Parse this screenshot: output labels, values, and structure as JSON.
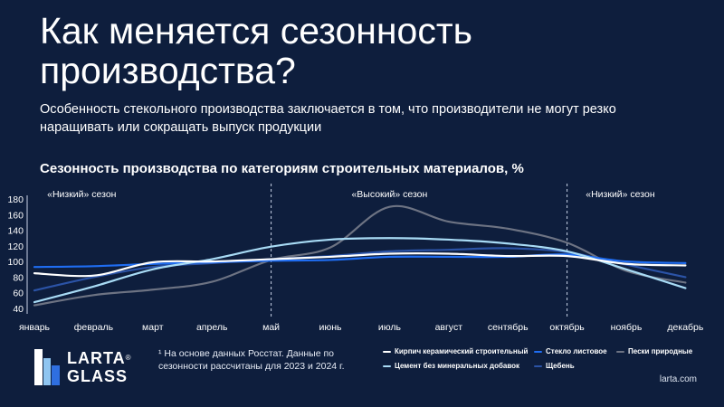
{
  "header": {
    "title": "Как меняется сезонность производства?",
    "subtitle": "Особенность стекольного производства заключается в том, что производители не могут резко наращивать или сокращать выпуск продукции"
  },
  "chart_data": {
    "type": "line",
    "title": "Сезонность производства по категориям строительных материалов, %",
    "categories": [
      "январь",
      "февраль",
      "март",
      "апрель",
      "май",
      "июнь",
      "июль",
      "август",
      "сентябрь",
      "октябрь",
      "ноябрь",
      "декабрь"
    ],
    "ylim": [
      40,
      180
    ],
    "yticks": [
      40,
      60,
      80,
      100,
      120,
      140,
      160,
      180
    ],
    "grid": false,
    "legend_position": "bottom",
    "season_labels": [
      {
        "text": "«Низкий» сезон",
        "at_month": 1.8
      },
      {
        "text": "«Высокий» сезон",
        "at_month": 7.0
      },
      {
        "text": "«Низкий» сезон",
        "at_month": 10.9
      }
    ],
    "season_dividers_at_month": [
      5,
      10
    ],
    "series": [
      {
        "name": "Кирпич керамический строительный",
        "color": "#ffffff",
        "values": [
          85,
          82,
          99,
          100,
          103,
          106,
          110,
          110,
          107,
          107,
          97,
          95
        ]
      },
      {
        "name": "Стекло листовое",
        "color": "#1f6df2",
        "values": [
          93,
          94,
          97,
          99,
          101,
          102,
          106,
          106,
          106,
          109,
          100,
          98
        ]
      },
      {
        "name": "Пески природные",
        "color": "#6d7383",
        "values": [
          44,
          57,
          64,
          74,
          102,
          118,
          170,
          151,
          142,
          124,
          88,
          73
        ]
      },
      {
        "name": "Цемент без минеральных добавок",
        "color": "#a8dbf5",
        "values": [
          48,
          68,
          90,
          103,
          119,
          128,
          130,
          128,
          123,
          113,
          90,
          66
        ]
      },
      {
        "name": "Щебень",
        "color": "#2b53a6",
        "values": [
          63,
          80,
          93,
          98,
          103,
          107,
          113,
          115,
          117,
          112,
          96,
          80
        ]
      }
    ]
  },
  "footer": {
    "logo_line1": "LARTA",
    "logo_line2": "GLASS",
    "logo_reg": "®",
    "footnote": "¹ На основе данных Росстат. Данные по сезонности рассчитаны для 2023 и 2024 г.",
    "site": "larta.com"
  }
}
